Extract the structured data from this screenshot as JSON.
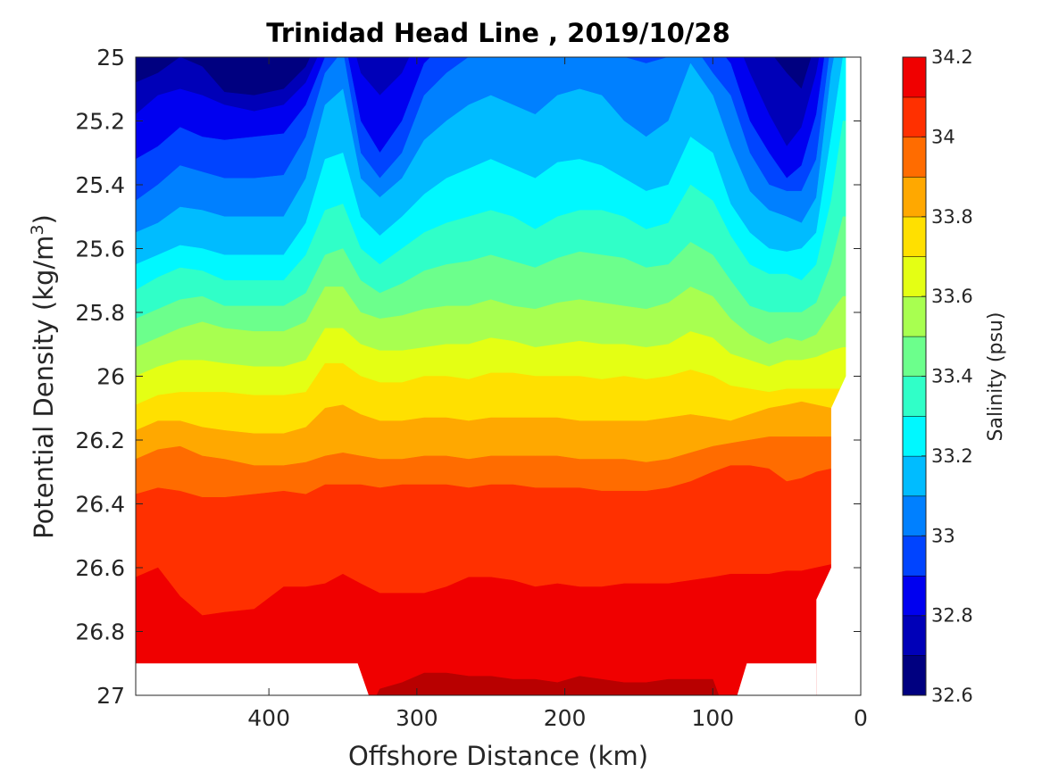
{
  "chart_data": {
    "type": "heatmap",
    "title": "Trinidad Head Line , 2019/10/28",
    "xlabel": "Offshore Distance (km)",
    "ylabel_main": "Potential Density (kg/m",
    "ylabel_sup": "3",
    "ylabel_close": ")",
    "xlim": [
      490,
      0
    ],
    "ylim": [
      25,
      27
    ],
    "xticks": [
      400,
      300,
      200,
      100,
      0
    ],
    "yticks": [
      25,
      25.2,
      25.4,
      25.6,
      25.8,
      26,
      26.2,
      26.4,
      26.6,
      26.8,
      27
    ],
    "colorbar": {
      "label": "Salinity (psu)",
      "range": [
        32.6,
        34.2
      ],
      "step": 0.1,
      "ticks": [
        32.6,
        32.8,
        33,
        33.2,
        33.4,
        33.6,
        33.8,
        34,
        34.2
      ],
      "colors": [
        "#000080",
        "#0000b8",
        "#0000f0",
        "#0044ff",
        "#0080ff",
        "#00bcff",
        "#00f8ff",
        "#30ffc8",
        "#6cff8c",
        "#a8ff50",
        "#e4ff14",
        "#ffe000",
        "#ffa800",
        "#ff6c00",
        "#ff3000",
        "#f00000",
        "#b80000"
      ]
    },
    "x": [
      490,
      475,
      460,
      445,
      430,
      410,
      390,
      375,
      362,
      350,
      338,
      325,
      310,
      295,
      280,
      265,
      250,
      235,
      220,
      205,
      190,
      175,
      160,
      145,
      130,
      115,
      100,
      88,
      75,
      62,
      50,
      40,
      30,
      20,
      12
    ],
    "contours": [
      {
        "level": 32.7,
        "y": [
          25.08,
          25.05,
          25.0,
          25.03,
          25.11,
          25.12,
          25.1,
          25.03,
          24.9,
          24.8,
          24.85,
          24.95,
          24.85,
          24.8,
          24.8,
          24.8,
          24.8,
          24.8,
          24.8,
          24.8,
          24.8,
          24.8,
          24.8,
          24.8,
          24.8,
          24.8,
          24.8,
          24.8,
          24.9,
          24.98,
          25.05,
          25.1,
          24.95,
          24.8,
          24.8
        ]
      },
      {
        "level": 32.8,
        "y": [
          25.18,
          25.12,
          25.1,
          25.12,
          25.15,
          25.17,
          25.15,
          25.08,
          24.95,
          24.85,
          25.05,
          25.12,
          25.05,
          24.9,
          24.85,
          24.85,
          24.85,
          24.85,
          24.85,
          24.85,
          24.85,
          24.85,
          24.85,
          24.85,
          24.85,
          24.85,
          24.85,
          24.9,
          25.05,
          25.18,
          25.28,
          25.22,
          25.05,
          24.8,
          24.8
        ]
      },
      {
        "level": 32.9,
        "y": [
          25.32,
          25.28,
          25.22,
          25.25,
          25.26,
          25.25,
          25.24,
          25.15,
          25.0,
          24.92,
          25.2,
          25.3,
          25.2,
          25.02,
          24.95,
          24.92,
          24.9,
          24.9,
          24.9,
          24.9,
          24.9,
          24.9,
          24.9,
          24.9,
          24.9,
          24.9,
          24.95,
          25.02,
          25.2,
          25.3,
          25.38,
          25.34,
          25.18,
          24.85,
          24.8
        ]
      },
      {
        "level": 33.0,
        "y": [
          25.45,
          25.4,
          25.34,
          25.36,
          25.38,
          25.38,
          25.37,
          25.25,
          25.05,
          24.98,
          25.3,
          25.38,
          25.3,
          25.12,
          25.05,
          25.0,
          24.96,
          24.98,
          24.98,
          24.95,
          24.92,
          24.95,
          25.0,
          25.02,
          25.0,
          24.95,
          25.05,
          25.12,
          25.3,
          25.4,
          25.42,
          25.42,
          25.32,
          24.95,
          24.82
        ]
      },
      {
        "level": 33.1,
        "y": [
          25.55,
          25.52,
          25.47,
          25.48,
          25.5,
          25.5,
          25.5,
          25.38,
          25.15,
          25.1,
          25.38,
          25.44,
          25.38,
          25.26,
          25.2,
          25.15,
          25.12,
          25.15,
          25.18,
          25.12,
          25.1,
          25.12,
          25.2,
          25.25,
          25.2,
          25.02,
          25.12,
          25.28,
          25.42,
          25.48,
          25.5,
          25.52,
          25.44,
          25.05,
          24.85
        ]
      },
      {
        "level": 33.2,
        "y": [
          25.65,
          25.62,
          25.59,
          25.6,
          25.62,
          25.62,
          25.62,
          25.52,
          25.32,
          25.3,
          25.5,
          25.56,
          25.5,
          25.43,
          25.38,
          25.35,
          25.32,
          25.35,
          25.38,
          25.33,
          25.32,
          25.34,
          25.38,
          25.42,
          25.4,
          25.25,
          25.3,
          25.46,
          25.55,
          25.6,
          25.61,
          25.6,
          25.55,
          25.25,
          25.0
        ]
      },
      {
        "level": 33.3,
        "y": [
          25.73,
          25.69,
          25.66,
          25.67,
          25.7,
          25.7,
          25.7,
          25.62,
          25.48,
          25.46,
          25.6,
          25.65,
          25.6,
          25.55,
          25.52,
          25.5,
          25.48,
          25.5,
          25.54,
          25.5,
          25.48,
          25.48,
          25.5,
          25.54,
          25.52,
          25.4,
          25.45,
          25.56,
          25.65,
          25.68,
          25.68,
          25.7,
          25.65,
          25.45,
          25.2
        ]
      },
      {
        "level": 33.4,
        "y": [
          25.82,
          25.79,
          25.76,
          25.75,
          25.78,
          25.78,
          25.78,
          25.74,
          25.62,
          25.6,
          25.7,
          25.74,
          25.71,
          25.67,
          25.65,
          25.64,
          25.62,
          25.64,
          25.66,
          25.63,
          25.61,
          25.62,
          25.63,
          25.66,
          25.65,
          25.58,
          25.62,
          25.7,
          25.78,
          25.8,
          25.8,
          25.8,
          25.77,
          25.65,
          25.5
        ]
      },
      {
        "level": 33.5,
        "y": [
          25.91,
          25.88,
          25.85,
          25.83,
          25.85,
          25.86,
          25.86,
          25.83,
          25.72,
          25.72,
          25.8,
          25.82,
          25.81,
          25.79,
          25.78,
          25.78,
          25.76,
          25.78,
          25.79,
          25.77,
          25.76,
          25.77,
          25.78,
          25.79,
          25.77,
          25.72,
          25.75,
          25.82,
          25.87,
          25.9,
          25.88,
          25.89,
          25.87,
          25.8,
          25.75
        ]
      },
      {
        "level": 33.6,
        "y": [
          26.0,
          25.97,
          25.95,
          25.95,
          25.96,
          25.97,
          25.97,
          25.95,
          25.85,
          25.85,
          25.9,
          25.92,
          25.92,
          25.91,
          25.9,
          25.9,
          25.88,
          25.89,
          25.91,
          25.9,
          25.89,
          25.9,
          25.9,
          25.91,
          25.9,
          25.86,
          25.88,
          25.93,
          25.95,
          25.97,
          25.95,
          25.95,
          25.94,
          25.92,
          25.91
        ]
      },
      {
        "level": 33.7,
        "y": [
          26.09,
          26.06,
          26.05,
          26.05,
          26.05,
          26.06,
          26.06,
          26.05,
          25.96,
          25.96,
          26.0,
          26.02,
          26.02,
          26.0,
          26.0,
          26.01,
          25.99,
          25.99,
          26.0,
          26.0,
          26.0,
          26.01,
          26.0,
          26.01,
          26.0,
          25.98,
          26.0,
          26.03,
          26.04,
          26.05,
          26.04,
          26.04,
          26.04,
          26.04,
          26.04
        ]
      },
      {
        "level": 33.8,
        "y": [
          26.17,
          26.14,
          26.14,
          26.16,
          26.17,
          26.18,
          26.18,
          26.16,
          26.1,
          26.09,
          26.12,
          26.14,
          26.14,
          26.13,
          26.13,
          26.14,
          26.13,
          26.13,
          26.13,
          26.13,
          26.14,
          26.14,
          26.14,
          26.14,
          26.13,
          26.12,
          26.13,
          26.14,
          26.12,
          26.1,
          26.09,
          26.08,
          26.09,
          26.1,
          26.1
        ]
      },
      {
        "level": 33.9,
        "y": [
          26.26,
          26.23,
          26.22,
          26.25,
          26.26,
          26.28,
          26.28,
          26.27,
          26.25,
          26.24,
          26.25,
          26.26,
          26.26,
          26.25,
          26.25,
          26.26,
          26.25,
          26.25,
          26.25,
          26.25,
          26.26,
          26.26,
          26.26,
          26.27,
          26.26,
          26.24,
          26.22,
          26.21,
          26.2,
          26.19,
          26.19,
          26.19,
          26.19,
          26.19,
          26.19
        ]
      },
      {
        "level": 34.0,
        "y": [
          26.37,
          26.35,
          26.36,
          26.38,
          26.38,
          26.37,
          26.36,
          26.37,
          26.34,
          26.34,
          26.34,
          26.35,
          26.34,
          26.34,
          26.34,
          26.35,
          26.34,
          26.34,
          26.35,
          26.35,
          26.35,
          26.36,
          26.36,
          26.36,
          26.35,
          26.33,
          26.3,
          26.28,
          26.28,
          26.29,
          26.33,
          26.32,
          26.3,
          26.29,
          26.29
        ]
      },
      {
        "level": 34.1,
        "y": [
          26.63,
          26.6,
          26.69,
          26.75,
          26.74,
          26.73,
          26.66,
          26.66,
          26.65,
          26.62,
          26.65,
          26.68,
          26.68,
          26.68,
          26.66,
          26.63,
          26.63,
          26.64,
          26.66,
          26.65,
          26.66,
          26.66,
          26.65,
          26.65,
          26.65,
          26.64,
          26.63,
          26.62,
          26.62,
          26.62,
          26.61,
          26.61,
          26.6,
          26.59,
          26.59
        ]
      },
      {
        "level": 34.2,
        "y": [
          27.1,
          27.1,
          27.1,
          27.1,
          27.1,
          27.1,
          27.1,
          27.1,
          27.1,
          27.1,
          27.1,
          26.98,
          26.96,
          26.93,
          26.93,
          26.94,
          26.94,
          26.95,
          26.95,
          26.96,
          26.94,
          26.95,
          26.96,
          26.96,
          26.95,
          26.95,
          26.95,
          27.1,
          27.1,
          27.1,
          27.1,
          27.1,
          27.1,
          27.1,
          27.1
        ]
      }
    ],
    "mask_white": [
      [
        [
          490,
          26.9
        ],
        [
          340,
          26.9
        ],
        [
          325,
          27.1
        ],
        [
          490,
          27.1
        ]
      ],
      [
        [
          90,
          27.1
        ],
        [
          77,
          26.9
        ],
        [
          30,
          26.9
        ],
        [
          30,
          27.1
        ]
      ],
      [
        [
          30,
          27.1
        ],
        [
          30,
          26.7
        ],
        [
          20,
          26.6
        ],
        [
          20,
          26.1
        ],
        [
          10,
          26.0
        ],
        [
          10,
          24.9
        ],
        [
          -10,
          24.9
        ],
        [
          -10,
          27.1
        ]
      ]
    ]
  }
}
